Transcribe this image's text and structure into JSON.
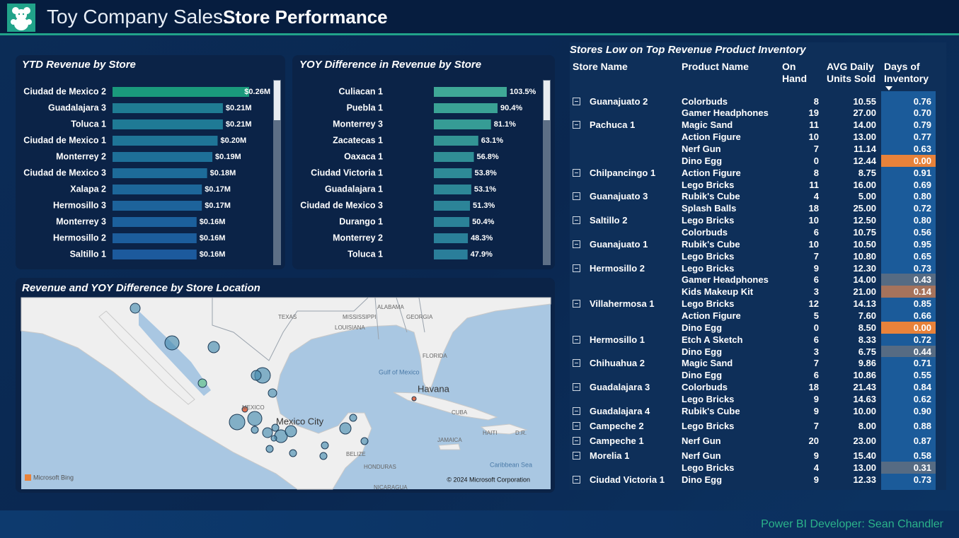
{
  "header": {
    "title": "Toy Company Sales:",
    "subtitle": "Store Performance"
  },
  "chart_data": [
    {
      "type": "bar",
      "orientation": "horizontal",
      "title": "YTD Revenue by Store",
      "categories": [
        "Ciudad de Mexico 2",
        "Guadalajara 3",
        "Toluca 1",
        "Ciudad de Mexico 1",
        "Monterrey 2",
        "Ciudad de Mexico 3",
        "Xalapa 2",
        "Hermosillo 3",
        "Monterrey 3",
        "Hermosillo 2",
        "Saltillo 1"
      ],
      "values": [
        0.26,
        0.21,
        0.21,
        0.2,
        0.19,
        0.18,
        0.17,
        0.17,
        0.16,
        0.16,
        0.16
      ],
      "value_labels": [
        "$0.26M",
        "$0.21M",
        "$0.21M",
        "$0.20M",
        "$0.19M",
        "$0.18M",
        "$0.17M",
        "$0.17M",
        "$0.16M",
        "$0.16M",
        "$0.16M"
      ],
      "colors": [
        "#1a9a7c",
        "#1f7c93",
        "#1f7a95",
        "#1f7597",
        "#1e7098",
        "#1d6b99",
        "#1d679a",
        "#1d639b",
        "#1c609c",
        "#1c5d9c",
        "#1c5a9d"
      ]
    },
    {
      "type": "bar",
      "orientation": "horizontal",
      "title": "YOY Difference in Revenue by Store",
      "categories": [
        "Culiacan 1",
        "Puebla 1",
        "Monterrey 3",
        "Zacatecas 1",
        "Oaxaca 1",
        "Ciudad Victoria 1",
        "Guadalajara 1",
        "Ciudad de Mexico 3",
        "Durango 1",
        "Monterrey 2",
        "Toluca 1"
      ],
      "values": [
        103.5,
        90.4,
        81.1,
        63.1,
        56.8,
        53.8,
        53.1,
        51.3,
        50.4,
        48.3,
        47.9
      ],
      "value_labels": [
        "103.5%",
        "90.4%",
        "81.1%",
        "63.1%",
        "56.8%",
        "53.8%",
        "53.1%",
        "51.3%",
        "50.4%",
        "48.3%",
        "47.9%"
      ],
      "colors": [
        "#3fa896",
        "#3aa295",
        "#369c95",
        "#339494",
        "#308e96",
        "#2e8a97",
        "#2d8797",
        "#2c8498",
        "#2b8298",
        "#2a8099",
        "#2a7e9a"
      ]
    }
  ],
  "map": {
    "title": "Revenue and YOY Difference by Store Location",
    "labels": [
      "TEXAS",
      "ALABAMA",
      "MISSISSIPPI",
      "GEORGIA",
      "LOUISIANA",
      "FLORIDA",
      "Gulf of Mexico",
      "Havana",
      "CUBA",
      "MEXICO",
      "Mexico City",
      "HAITI",
      "D.R.",
      "JAMAICA",
      "BELIZE",
      "HONDURAS",
      "Caribbean Sea",
      "NICARAGUA"
    ],
    "attribution": "Microsoft Bing",
    "copyright": "© 2024 Microsoft Corporation"
  },
  "table": {
    "title": "Stores Low on Top Revenue Product Inventory",
    "columns": [
      "Store Name",
      "Product Name",
      "On Hand",
      "AVG Daily Units Sold",
      "Days of Inventory"
    ],
    "rows": [
      [
        "Guanajuato 2",
        "Colorbuds",
        "8",
        "10.55",
        "0.76"
      ],
      [
        null,
        "Gamer Headphones",
        "19",
        "27.00",
        "0.70"
      ],
      [
        "Pachuca 1",
        "Magic Sand",
        "11",
        "14.00",
        "0.79"
      ],
      [
        null,
        "Action Figure",
        "10",
        "13.00",
        "0.77"
      ],
      [
        null,
        "Nerf Gun",
        "7",
        "11.14",
        "0.63"
      ],
      [
        null,
        "Dino Egg",
        "0",
        "12.44",
        "0.00"
      ],
      [
        "Chilpancingo 1",
        "Action Figure",
        "8",
        "8.75",
        "0.91"
      ],
      [
        null,
        "Lego Bricks",
        "11",
        "16.00",
        "0.69"
      ],
      [
        "Guanajuato 3",
        "Rubik's Cube",
        "4",
        "5.00",
        "0.80"
      ],
      [
        null,
        "Splash Balls",
        "18",
        "25.00",
        "0.72"
      ],
      [
        "Saltillo 2",
        "Lego Bricks",
        "10",
        "12.50",
        "0.80"
      ],
      [
        null,
        "Colorbuds",
        "6",
        "10.75",
        "0.56"
      ],
      [
        "Guanajuato 1",
        "Rubik's Cube",
        "10",
        "10.50",
        "0.95"
      ],
      [
        null,
        "Lego Bricks",
        "7",
        "10.80",
        "0.65"
      ],
      [
        "Hermosillo 2",
        "Lego Bricks",
        "9",
        "12.30",
        "0.73"
      ],
      [
        null,
        "Gamer Headphones",
        "6",
        "14.00",
        "0.43"
      ],
      [
        null,
        "Kids Makeup Kit",
        "3",
        "21.00",
        "0.14"
      ],
      [
        "Villahermosa 1",
        "Lego Bricks",
        "12",
        "14.13",
        "0.85"
      ],
      [
        null,
        "Action Figure",
        "5",
        "7.60",
        "0.66"
      ],
      [
        null,
        "Dino Egg",
        "0",
        "8.50",
        "0.00"
      ],
      [
        "Hermosillo 1",
        "Etch A Sketch",
        "6",
        "8.33",
        "0.72"
      ],
      [
        null,
        "Dino Egg",
        "3",
        "6.75",
        "0.44"
      ],
      [
        "Chihuahua 2",
        "Magic Sand",
        "7",
        "9.86",
        "0.71"
      ],
      [
        null,
        "Dino Egg",
        "6",
        "10.86",
        "0.55"
      ],
      [
        "Guadalajara 3",
        "Colorbuds",
        "18",
        "21.43",
        "0.84"
      ],
      [
        null,
        "Lego Bricks",
        "9",
        "14.63",
        "0.62"
      ],
      [
        "Guadalajara 4",
        "Rubik's Cube",
        "9",
        "10.00",
        "0.90"
      ],
      [
        "Campeche 2",
        "Lego Bricks",
        "7",
        "8.00",
        "0.88"
      ],
      [
        "Campeche 1",
        "Nerf Gun",
        "20",
        "23.00",
        "0.87"
      ],
      [
        "Morelia 1",
        "Nerf Gun",
        "9",
        "15.40",
        "0.58"
      ],
      [
        null,
        "Lego Bricks",
        "4",
        "13.00",
        "0.31"
      ],
      [
        "Ciudad Victoria 1",
        "Dino Egg",
        "9",
        "12.33",
        "0.73"
      ]
    ]
  },
  "footer": "Power BI Developer: Sean Chandler"
}
